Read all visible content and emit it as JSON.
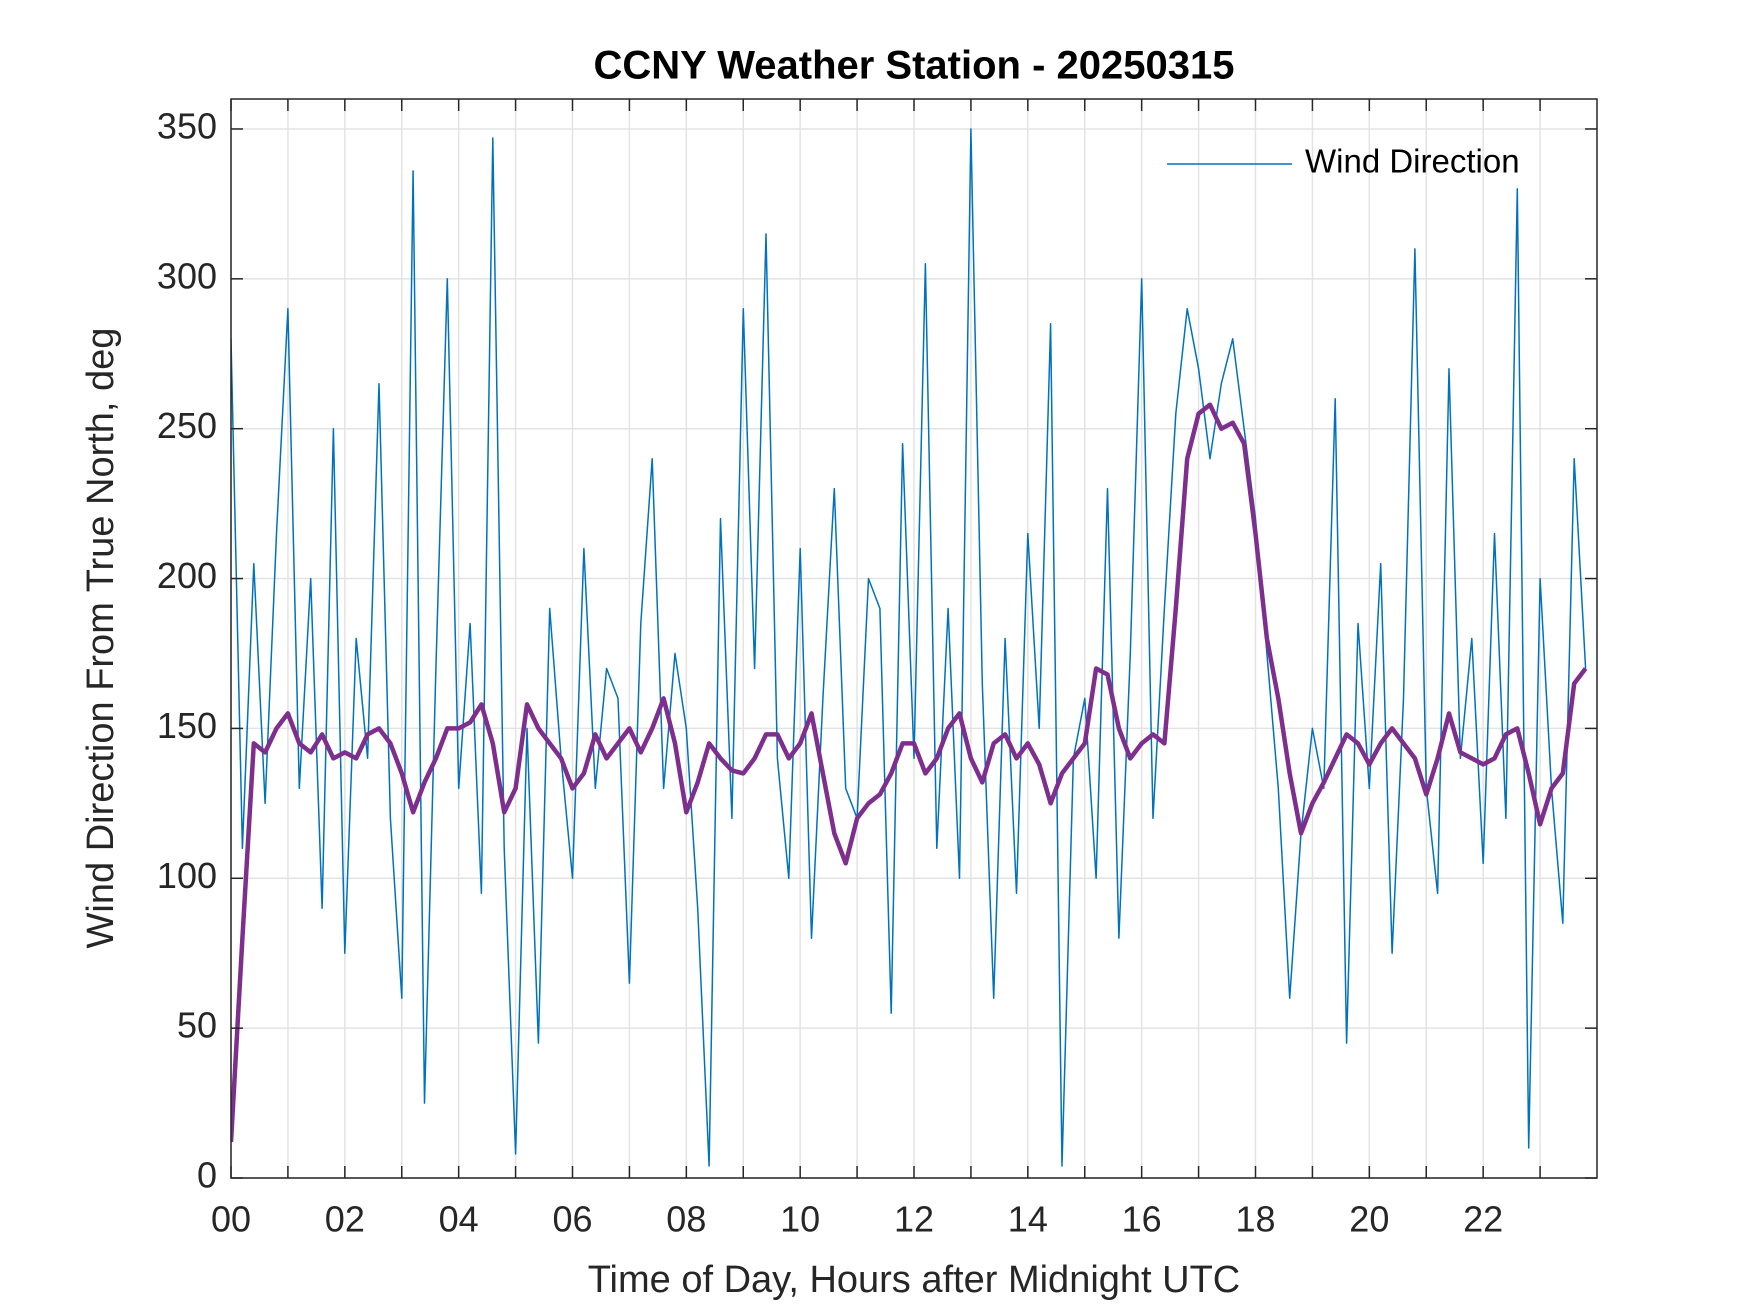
{
  "chart_data": {
    "type": "line",
    "title": "CCNY Weather Station - 20250315",
    "x_label": "Time of Day, Hours after Midnight UTC",
    "y_label": "Wind Direction From True North, deg",
    "xlim": [
      0,
      24
    ],
    "ylim": [
      0,
      360
    ],
    "xticks": [
      {
        "value": 0,
        "label": "00"
      },
      {
        "value": 2,
        "label": "02"
      },
      {
        "value": 4,
        "label": "04"
      },
      {
        "value": 6,
        "label": "06"
      },
      {
        "value": 8,
        "label": "08"
      },
      {
        "value": 10,
        "label": "10"
      },
      {
        "value": 12,
        "label": "12"
      },
      {
        "value": 14,
        "label": "14"
      },
      {
        "value": 16,
        "label": "16"
      },
      {
        "value": 18,
        "label": "18"
      },
      {
        "value": 20,
        "label": "20"
      },
      {
        "value": 22,
        "label": "22"
      }
    ],
    "xminor_ticks": [
      1,
      3,
      5,
      7,
      9,
      11,
      13,
      15,
      17,
      19,
      21,
      23
    ],
    "yticks": [
      0,
      50,
      100,
      150,
      200,
      250,
      300,
      350
    ],
    "grid": true,
    "legend": "upper right",
    "x": [
      0,
      0.2,
      0.4,
      0.6,
      0.8,
      1,
      1.2,
      1.4,
      1.6,
      1.8,
      2,
      2.2,
      2.4,
      2.6,
      2.8,
      3,
      3.2,
      3.4,
      3.6,
      3.8,
      4,
      4.2,
      4.4,
      4.6,
      4.8,
      5,
      5.2,
      5.4,
      5.6,
      5.8,
      6,
      6.2,
      6.4,
      6.6,
      6.8,
      7,
      7.2,
      7.4,
      7.6,
      7.8,
      8,
      8.2,
      8.4,
      8.6,
      8.8,
      9,
      9.2,
      9.4,
      9.6,
      9.8,
      10,
      10.2,
      10.4,
      10.6,
      10.8,
      11,
      11.2,
      11.4,
      11.6,
      11.8,
      12,
      12.2,
      12.4,
      12.6,
      12.8,
      13,
      13.2,
      13.4,
      13.6,
      13.8,
      14,
      14.2,
      14.4,
      14.6,
      14.8,
      15,
      15.2,
      15.4,
      15.6,
      15.8,
      16,
      16.2,
      16.4,
      16.6,
      16.8,
      17,
      17.2,
      17.4,
      17.6,
      17.8,
      18,
      18.2,
      18.4,
      18.6,
      18.8,
      19,
      19.2,
      19.4,
      19.6,
      19.8,
      20,
      20.2,
      20.4,
      20.6,
      20.8,
      21,
      21.2,
      21.4,
      21.6,
      21.8,
      22,
      22.2,
      22.4,
      22.6,
      22.8,
      23,
      23.2,
      23.4,
      23.6,
      23.8
    ],
    "series": [
      {
        "name": "Wind Direction",
        "color": "#0072bd",
        "width": 1.5,
        "values": [
          280,
          110,
          205,
          125,
          215,
          290,
          130,
          200,
          90,
          250,
          75,
          180,
          140,
          265,
          120,
          60,
          336,
          25,
          170,
          300,
          130,
          185,
          95,
          347,
          110,
          8,
          150,
          45,
          190,
          140,
          100,
          210,
          130,
          170,
          160,
          65,
          185,
          240,
          130,
          175,
          150,
          90,
          4,
          220,
          120,
          290,
          170,
          315,
          140,
          100,
          210,
          80,
          160,
          230,
          130,
          120,
          200,
          190,
          55,
          245,
          140,
          305,
          110,
          190,
          100,
          350,
          165,
          60,
          180,
          95,
          215,
          150,
          285,
          4,
          140,
          160,
          100,
          230,
          80,
          175,
          300,
          120,
          190,
          255,
          290,
          270,
          240,
          265,
          280,
          250,
          220,
          175,
          130,
          60,
          115,
          150,
          130,
          260,
          45,
          185,
          130,
          205,
          75,
          160,
          310,
          130,
          95,
          270,
          140,
          180,
          105,
          215,
          120,
          330,
          10,
          200,
          130,
          85,
          240,
          170
        ]
      },
      {
        "color": "#7e2f8e",
        "width": 4.5,
        "values": [
          12,
          80,
          145,
          142,
          150,
          155,
          145,
          142,
          148,
          140,
          142,
          140,
          148,
          150,
          145,
          135,
          122,
          132,
          140,
          150,
          150,
          152,
          158,
          145,
          122,
          130,
          158,
          150,
          145,
          140,
          130,
          135,
          148,
          140,
          145,
          150,
          142,
          150,
          160,
          145,
          122,
          132,
          145,
          140,
          136,
          135,
          140,
          148,
          148,
          140,
          145,
          155,
          135,
          115,
          105,
          120,
          125,
          128,
          135,
          145,
          145,
          135,
          140,
          150,
          155,
          140,
          132,
          145,
          148,
          140,
          145,
          138,
          125,
          135,
          140,
          145,
          170,
          168,
          150,
          140,
          145,
          148,
          145,
          190,
          240,
          255,
          258,
          250,
          252,
          245,
          215,
          180,
          160,
          135,
          115,
          125,
          132,
          140,
          148,
          145,
          138,
          145,
          150,
          145,
          140,
          128,
          140,
          155,
          142,
          140,
          138,
          140,
          148,
          150,
          135,
          118,
          130,
          135,
          165,
          170
        ]
      }
    ]
  }
}
